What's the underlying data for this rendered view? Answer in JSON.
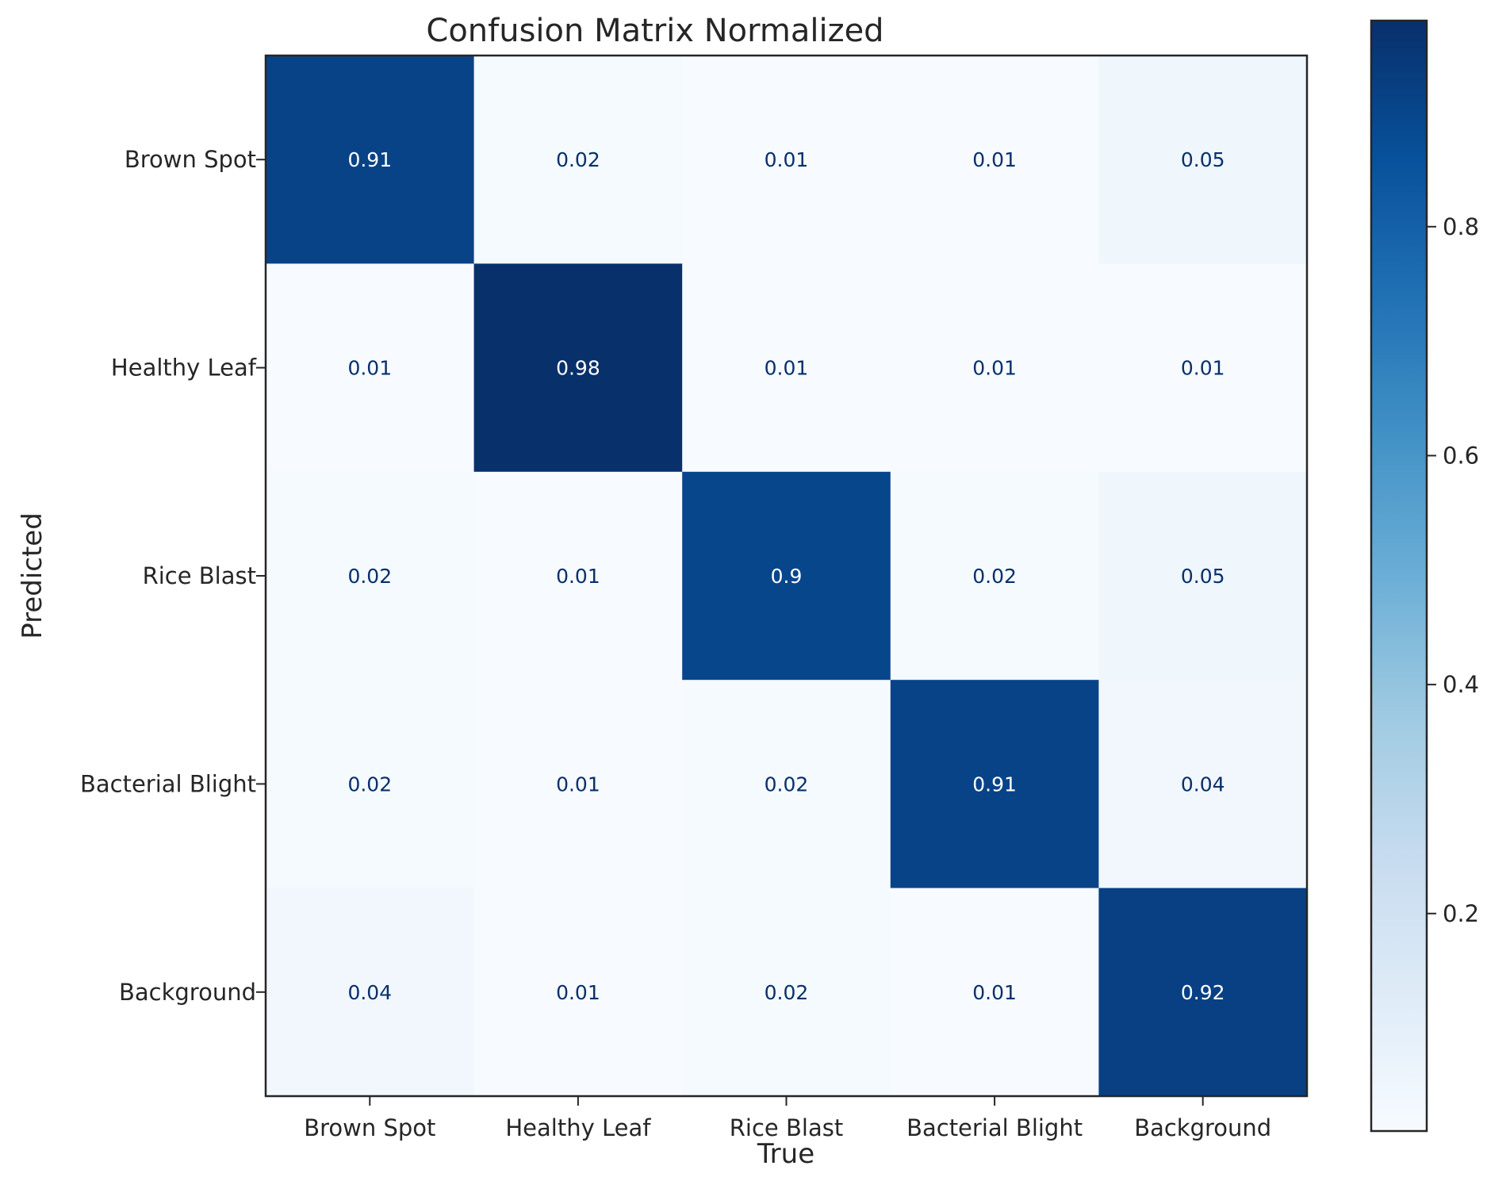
{
  "chart_data": {
    "type": "heatmap",
    "title": "Confusion Matrix Normalized",
    "xlabel": "True",
    "ylabel": "Predicted",
    "x_categories": [
      "Brown Spot",
      "Healthy Leaf",
      "Rice Blast",
      "Bacterial Blight",
      "Background"
    ],
    "y_categories": [
      "Brown Spot",
      "Healthy Leaf",
      "Rice Blast",
      "Bacterial Blight",
      "Background"
    ],
    "values": [
      [
        0.91,
        0.02,
        0.01,
        0.01,
        0.05
      ],
      [
        0.01,
        0.98,
        0.01,
        0.01,
        0.01
      ],
      [
        0.02,
        0.01,
        0.9,
        0.02,
        0.05
      ],
      [
        0.02,
        0.01,
        0.02,
        0.91,
        0.04
      ],
      [
        0.04,
        0.01,
        0.02,
        0.01,
        0.92
      ]
    ],
    "value_labels": [
      [
        "0.91",
        "0.02",
        "0.01",
        "0.01",
        "0.05"
      ],
      [
        "0.01",
        "0.98",
        "0.01",
        "0.01",
        "0.01"
      ],
      [
        "0.02",
        "0.01",
        "0.9",
        "0.02",
        "0.05"
      ],
      [
        "0.02",
        "0.01",
        "0.02",
        "0.91",
        "0.04"
      ],
      [
        "0.04",
        "0.01",
        "0.02",
        "0.01",
        "0.92"
      ]
    ],
    "colormap": "Blues",
    "color_range": [
      0.01,
      0.98
    ],
    "colorbar": {
      "ticks": [
        0.2,
        0.4,
        0.6,
        0.8
      ],
      "tick_labels": [
        "0.2",
        "0.4",
        "0.6",
        "0.8"
      ]
    },
    "grid": false
  },
  "colors": {
    "text_dark": "#262626",
    "cell_text_on_light": "#08306b",
    "cell_text_on_dark": "#ffffff",
    "blues": [
      "#f7fbff",
      "#deebf7",
      "#c6dbef",
      "#9ecae1",
      "#6baed6",
      "#4292c6",
      "#2171b5",
      "#08519c",
      "#08306b"
    ]
  }
}
